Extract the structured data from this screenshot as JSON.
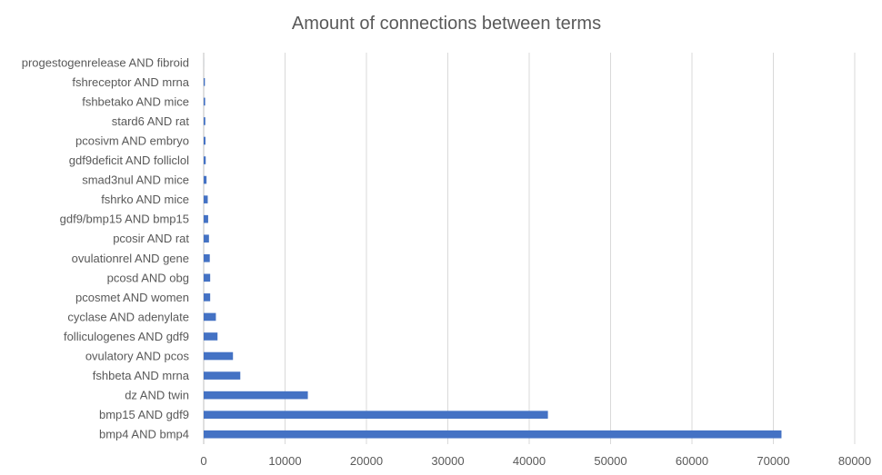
{
  "chart_data": {
    "type": "bar",
    "orientation": "horizontal",
    "title": "Amount of connections between terms",
    "xlabel": "",
    "ylabel": "",
    "xlim": [
      0,
      80000
    ],
    "x_ticks": [
      "0",
      "10000",
      "20000",
      "30000",
      "40000",
      "50000",
      "60000",
      "70000",
      "80000"
    ],
    "grid": true,
    "legend": "none",
    "bar_color": "#4472C4",
    "categories": [
      "progestogenrelease AND fibroid",
      "fshreceptor AND mrna",
      "fshbetako AND mice",
      "stard6 AND rat",
      "pcosivm AND embryo",
      "gdf9deficit AND folliclol",
      "smad3nul AND mice",
      "fshrko AND mice",
      "gdf9/bmp15 AND bmp15",
      "pcosir AND rat",
      "ovulationrel AND gene",
      "pcosd AND obg",
      "pcosmet AND women",
      "cyclase AND adenylate",
      "folliculogenes AND gdf9",
      "ovulatory AND pcos",
      "fshbeta AND mrna",
      "dz AND twin",
      "bmp15 AND gdf9",
      "bmp4 AND bmp4"
    ],
    "values": [
      5,
      150,
      180,
      200,
      220,
      250,
      350,
      500,
      550,
      650,
      750,
      800,
      800,
      1500,
      1700,
      3600,
      4500,
      12800,
      42300,
      71000
    ]
  }
}
